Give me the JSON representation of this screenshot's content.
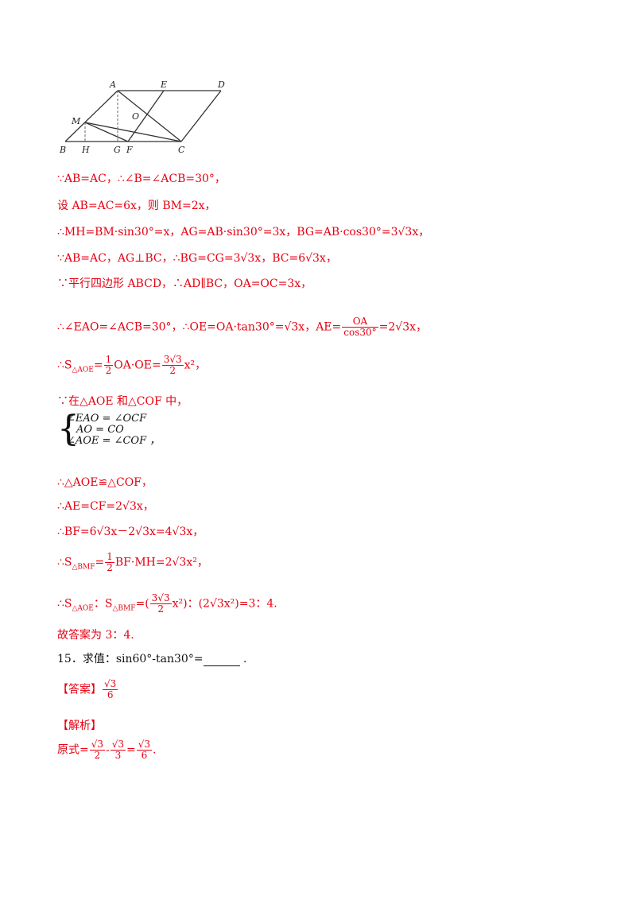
{
  "diagram": {
    "labels": {
      "A": "A",
      "E": "E",
      "D": "D",
      "M": "M",
      "O": "O",
      "B": "B",
      "H": "H",
      "G": "G",
      "F": "F",
      "C": "C"
    }
  },
  "solution_lines": {
    "l1": "∵AB=AC，∴∠B=∠ACB=30°，",
    "l2": "设 AB=AC=6x，则 BM=2x，",
    "l3": "∴MH=BM·sin30°=x，AG=AB·sin30°=3x，BG=AB·cos30°=3√3x，",
    "l4": "∵AB=AC，AG⊥BC，∴BG=CG=3√3x，BC=6√3x，",
    "l5": "∵平行四边形 ABCD，∴AD∥BC，OA=OC=3x，",
    "l6a": "∴∠EAO=∠ACB=30°，∴OE=OA·tan30°=",
    "l6b": "x，AE=",
    "l6c": "OA",
    "l6d": "cos30°",
    "l6e": "=2",
    "l6f": "x，",
    "l7a": "∴S",
    "l7sub": "△AOE",
    "l7b": "=",
    "l7c": "OA·OE=",
    "l7d": "x²，",
    "l8": "∵在△AOE 和△COF 中，",
    "sys1": "∠EAO = ∠OCF",
    "sys2": "AO = CO",
    "sys3": "∠AOE = ∠COF ，",
    "l9": "∴△AOE≌△COF，",
    "l10": "∴AE=CF=2√3x，",
    "l11": "∴BF=6√3x－2√3x=4√3x，",
    "l12a": "∴S",
    "l12sub": "△BMF",
    "l12b": "=",
    "l12c": "BF·MH=2",
    "l12d": "x²，",
    "l13a": "∴S",
    "l13sub1": "△AOE",
    "l13b": "：S",
    "l13sub2": "△BMF",
    "l13c": "=(",
    "l13d": "x²)：(2",
    "l13e": "x²)=3：4.",
    "l14": "故答案为 3：4."
  },
  "question15": {
    "text": "15．求值：sin60°-tan30°=",
    "end": "."
  },
  "answer": {
    "label": "【答案】",
    "num": "√3",
    "den": "6"
  },
  "analysis": {
    "label": "【解析】",
    "prefix": "原式=",
    "f1num": "√3",
    "f1den": "2",
    "minus": "-",
    "f2num": "√3",
    "f2den": "3",
    "eq": "=",
    "f3num": "√3",
    "f3den": "6",
    "end": "."
  },
  "common": {
    "sqrt3": "√3",
    "half_num": "1",
    "half_den": "2",
    "three_sqrt3": "3√3",
    "two": "2"
  }
}
